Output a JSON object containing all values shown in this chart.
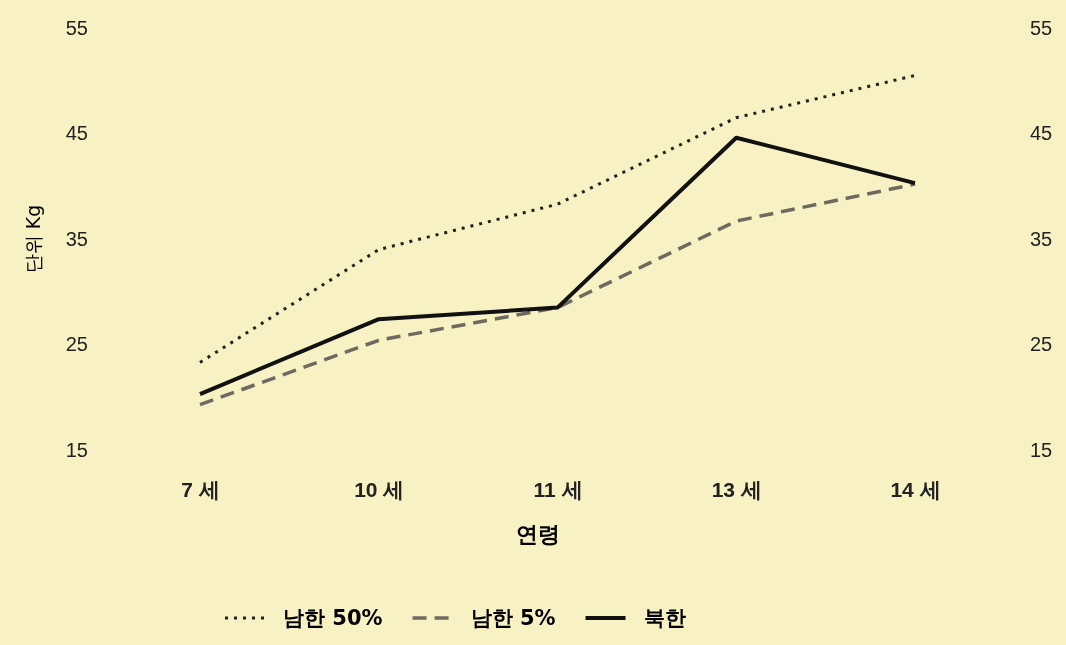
{
  "chart_data": {
    "type": "line",
    "xlabel": "연령",
    "ylabel": "단위 Kg",
    "categories": [
      "7 세",
      "10 세",
      "11 세",
      "13 세",
      "14 세"
    ],
    "series": [
      {
        "name": "남한 50%",
        "color": "#222222",
        "line_style": "dotted",
        "values": [
          23.3,
          34,
          38.3,
          46.5,
          50.5
        ]
      },
      {
        "name": "남한 5%",
        "color": "#6e6a60",
        "line_style": "dashed",
        "values": [
          19.3,
          25.4,
          28.5,
          36.7,
          40.2
        ]
      },
      {
        "name": "북한",
        "color": "#111111",
        "line_style": "solid",
        "values": [
          20.3,
          27.4,
          28.5,
          44.6,
          40.3
        ]
      }
    ],
    "ylim": [
      15,
      55
    ],
    "yticks": [
      15,
      25,
      35,
      45,
      55
    ],
    "y2lim": [
      15,
      55
    ],
    "y2ticks": [
      15,
      25,
      35,
      45,
      55
    ],
    "legend": "bottom"
  }
}
